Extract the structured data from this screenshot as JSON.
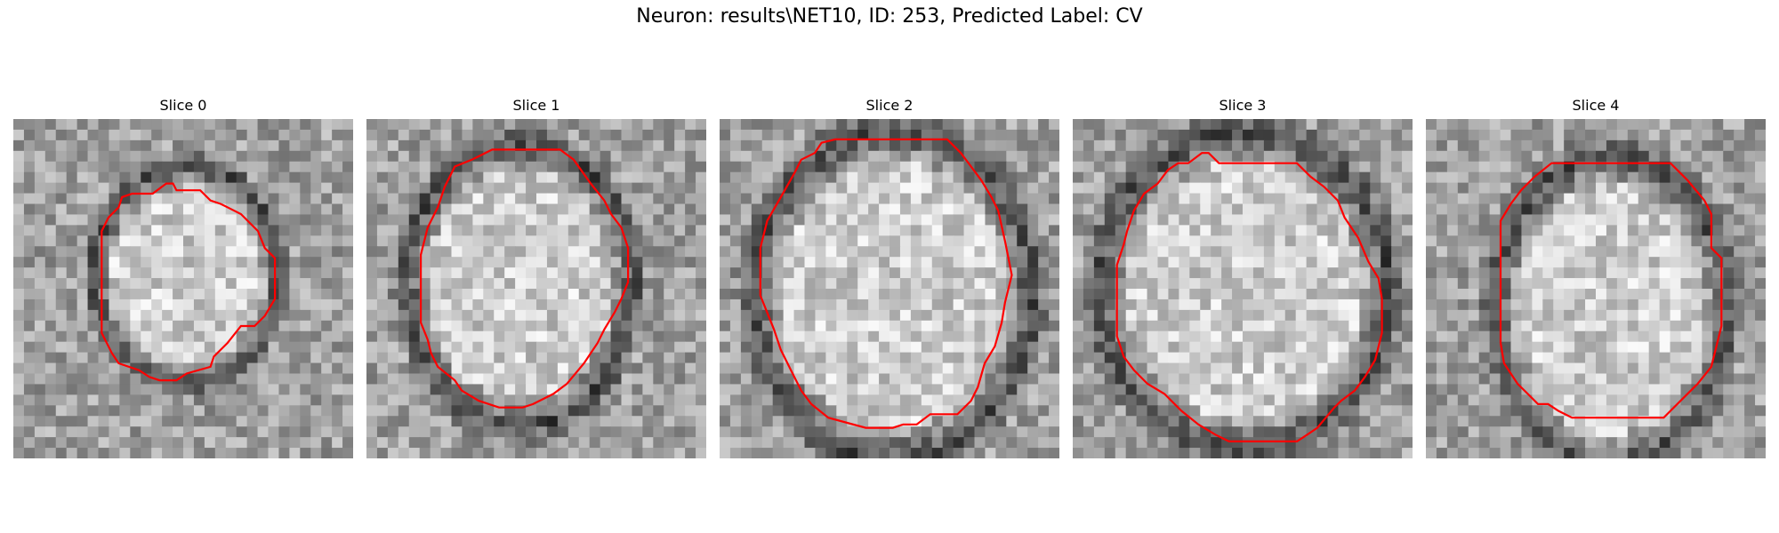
{
  "figure": {
    "title": "Neuron: results\\NET10, ID: 253, Predicted Label: CV"
  },
  "contour_color": "#ff0000",
  "slices": [
    {
      "title": "Slice 0",
      "seed": 11,
      "contour": [
        [
          0.45,
          0.19
        ],
        [
          0.47,
          0.19
        ],
        [
          0.48,
          0.21
        ],
        [
          0.55,
          0.21
        ],
        [
          0.58,
          0.24
        ],
        [
          0.61,
          0.25
        ],
        [
          0.63,
          0.26
        ],
        [
          0.67,
          0.28
        ],
        [
          0.72,
          0.33
        ],
        [
          0.74,
          0.38
        ],
        [
          0.77,
          0.41
        ],
        [
          0.77,
          0.53
        ],
        [
          0.74,
          0.58
        ],
        [
          0.71,
          0.61
        ],
        [
          0.67,
          0.61
        ],
        [
          0.63,
          0.66
        ],
        [
          0.59,
          0.7
        ],
        [
          0.58,
          0.73
        ],
        [
          0.51,
          0.75
        ],
        [
          0.48,
          0.77
        ],
        [
          0.43,
          0.77
        ],
        [
          0.4,
          0.76
        ],
        [
          0.37,
          0.74
        ],
        [
          0.31,
          0.72
        ],
        [
          0.29,
          0.69
        ],
        [
          0.26,
          0.63
        ],
        [
          0.26,
          0.33
        ],
        [
          0.28,
          0.29
        ],
        [
          0.31,
          0.26
        ],
        [
          0.32,
          0.23
        ],
        [
          0.35,
          0.22
        ],
        [
          0.41,
          0.22
        ]
      ]
    },
    {
      "title": "Slice 1",
      "seed": 23,
      "contour": [
        [
          0.37,
          0.09
        ],
        [
          0.57,
          0.09
        ],
        [
          0.61,
          0.12
        ],
        [
          0.66,
          0.19
        ],
        [
          0.7,
          0.24
        ],
        [
          0.72,
          0.28
        ],
        [
          0.75,
          0.32
        ],
        [
          0.77,
          0.38
        ],
        [
          0.77,
          0.48
        ],
        [
          0.75,
          0.53
        ],
        [
          0.73,
          0.57
        ],
        [
          0.7,
          0.62
        ],
        [
          0.68,
          0.66
        ],
        [
          0.64,
          0.72
        ],
        [
          0.59,
          0.78
        ],
        [
          0.55,
          0.81
        ],
        [
          0.49,
          0.84
        ],
        [
          0.46,
          0.85
        ],
        [
          0.39,
          0.85
        ],
        [
          0.33,
          0.83
        ],
        [
          0.28,
          0.8
        ],
        [
          0.26,
          0.77
        ],
        [
          0.21,
          0.73
        ],
        [
          0.19,
          0.69
        ],
        [
          0.18,
          0.65
        ],
        [
          0.16,
          0.6
        ],
        [
          0.16,
          0.56
        ],
        [
          0.16,
          0.4
        ],
        [
          0.18,
          0.32
        ],
        [
          0.21,
          0.26
        ],
        [
          0.23,
          0.2
        ],
        [
          0.26,
          0.14
        ],
        [
          0.31,
          0.12
        ],
        [
          0.33,
          0.11
        ]
      ]
    },
    {
      "title": "Slice 2",
      "seed": 37,
      "contour": [
        [
          0.34,
          0.06
        ],
        [
          0.67,
          0.06
        ],
        [
          0.71,
          0.1
        ],
        [
          0.74,
          0.14
        ],
        [
          0.77,
          0.18
        ],
        [
          0.8,
          0.23
        ],
        [
          0.82,
          0.27
        ],
        [
          0.84,
          0.36
        ],
        [
          0.86,
          0.46
        ],
        [
          0.84,
          0.54
        ],
        [
          0.83,
          0.6
        ],
        [
          0.81,
          0.67
        ],
        [
          0.78,
          0.72
        ],
        [
          0.76,
          0.79
        ],
        [
          0.74,
          0.83
        ],
        [
          0.7,
          0.87
        ],
        [
          0.68,
          0.87
        ],
        [
          0.62,
          0.87
        ],
        [
          0.58,
          0.9
        ],
        [
          0.54,
          0.9
        ],
        [
          0.51,
          0.91
        ],
        [
          0.43,
          0.91
        ],
        [
          0.32,
          0.88
        ],
        [
          0.27,
          0.84
        ],
        [
          0.24,
          0.8
        ],
        [
          0.21,
          0.74
        ],
        [
          0.18,
          0.68
        ],
        [
          0.16,
          0.62
        ],
        [
          0.12,
          0.52
        ],
        [
          0.12,
          0.38
        ],
        [
          0.14,
          0.3
        ],
        [
          0.18,
          0.23
        ],
        [
          0.22,
          0.16
        ],
        [
          0.24,
          0.12
        ],
        [
          0.28,
          0.1
        ],
        [
          0.3,
          0.07
        ]
      ]
    },
    {
      "title": "Slice 3",
      "seed": 53,
      "contour": [
        [
          0.38,
          0.1
        ],
        [
          0.4,
          0.1
        ],
        [
          0.43,
          0.13
        ],
        [
          0.47,
          0.13
        ],
        [
          0.49,
          0.13
        ],
        [
          0.66,
          0.13
        ],
        [
          0.7,
          0.17
        ],
        [
          0.74,
          0.2
        ],
        [
          0.78,
          0.24
        ],
        [
          0.8,
          0.29
        ],
        [
          0.84,
          0.35
        ],
        [
          0.87,
          0.42
        ],
        [
          0.9,
          0.47
        ],
        [
          0.91,
          0.53
        ],
        [
          0.91,
          0.63
        ],
        [
          0.89,
          0.71
        ],
        [
          0.86,
          0.76
        ],
        [
          0.83,
          0.8
        ],
        [
          0.79,
          0.83
        ],
        [
          0.77,
          0.85
        ],
        [
          0.72,
          0.91
        ],
        [
          0.69,
          0.93
        ],
        [
          0.66,
          0.95
        ],
        [
          0.56,
          0.95
        ],
        [
          0.46,
          0.95
        ],
        [
          0.42,
          0.93
        ],
        [
          0.37,
          0.9
        ],
        [
          0.32,
          0.86
        ],
        [
          0.27,
          0.81
        ],
        [
          0.22,
          0.78
        ],
        [
          0.18,
          0.74
        ],
        [
          0.15,
          0.7
        ],
        [
          0.13,
          0.64
        ],
        [
          0.13,
          0.52
        ],
        [
          0.13,
          0.43
        ],
        [
          0.15,
          0.37
        ],
        [
          0.16,
          0.33
        ],
        [
          0.18,
          0.27
        ],
        [
          0.21,
          0.22
        ],
        [
          0.25,
          0.19
        ],
        [
          0.28,
          0.15
        ],
        [
          0.31,
          0.13
        ],
        [
          0.34,
          0.13
        ]
      ]
    },
    {
      "title": "Slice 4",
      "seed": 71,
      "contour": [
        [
          0.37,
          0.13
        ],
        [
          0.72,
          0.13
        ],
        [
          0.77,
          0.18
        ],
        [
          0.82,
          0.24
        ],
        [
          0.84,
          0.28
        ],
        [
          0.84,
          0.38
        ],
        [
          0.87,
          0.41
        ],
        [
          0.87,
          0.61
        ],
        [
          0.84,
          0.73
        ],
        [
          0.8,
          0.78
        ],
        [
          0.76,
          0.82
        ],
        [
          0.72,
          0.86
        ],
        [
          0.7,
          0.88
        ],
        [
          0.65,
          0.88
        ],
        [
          0.43,
          0.88
        ],
        [
          0.39,
          0.86
        ],
        [
          0.36,
          0.84
        ],
        [
          0.33,
          0.84
        ],
        [
          0.3,
          0.81
        ],
        [
          0.27,
          0.78
        ],
        [
          0.23,
          0.72
        ],
        [
          0.22,
          0.66
        ],
        [
          0.22,
          0.3
        ],
        [
          0.25,
          0.25
        ],
        [
          0.28,
          0.21
        ],
        [
          0.32,
          0.17
        ]
      ]
    }
  ]
}
